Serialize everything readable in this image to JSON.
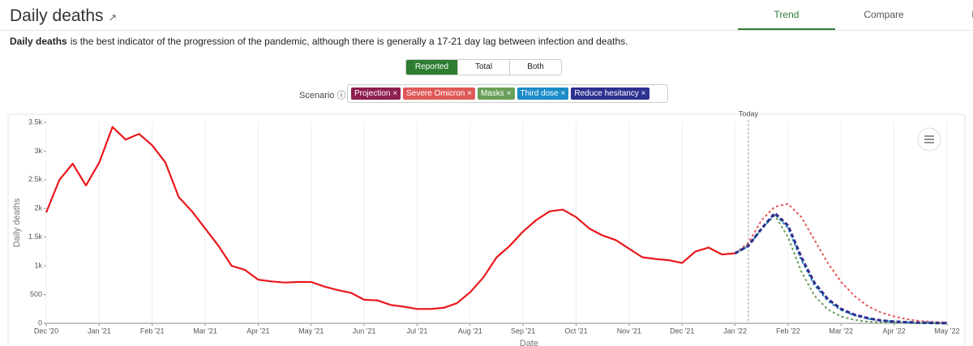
{
  "header": {
    "title": "Daily deaths",
    "tabs": [
      "Trend",
      "Compare",
      "Map"
    ]
  },
  "description": {
    "bold": "Daily deaths",
    "text": "is the best indicator of the progression of the pandemic, although there is generally a 17-21 day lag between infection and deaths."
  },
  "toggle": {
    "other_options": [
      "Total",
      "Both"
    ]
  },
  "scenario_label": "Scenario",
  "chart_data": {
    "type": "line",
    "annotation": "Today",
    "ylabel": "Daily deaths",
    "xlabel": "Date",
    "categories": [
      "Dec '20",
      null,
      null,
      null,
      "Jan '21",
      null,
      null,
      null,
      "Feb '21",
      null,
      null,
      null,
      "Mar '21",
      null,
      null,
      null,
      "Apr '21",
      null,
      null,
      null,
      "May '21",
      null,
      null,
      null,
      "Jun '21",
      null,
      null,
      null,
      "Jul '21",
      null,
      null,
      null,
      "Aug '21",
      null,
      null,
      null,
      "Sep '21",
      null,
      null,
      null,
      "Oct '21",
      null,
      null,
      null,
      "Nov '21",
      null,
      null,
      null,
      "Dec '21",
      null,
      null,
      null,
      "Jan '22",
      null,
      null,
      null,
      "Feb '22",
      null,
      null,
      null,
      "Mar '22",
      null,
      null,
      null,
      "Apr '22",
      null,
      null,
      null,
      "May '22"
    ],
    "ylim": [
      0,
      3500
    ],
    "yticks": [
      0,
      500,
      {
        "value": 1000,
        "label": "1k"
      },
      {
        "value": 1500,
        "label": "1.5k"
      },
      {
        "value": 2000,
        "label": "2k"
      },
      {
        "value": 2500,
        "label": "2.5k"
      },
      {
        "value": 3000,
        "label": "3k"
      },
      {
        "value": 3500,
        "label": "3.5k"
      }
    ],
    "grid": true,
    "series": [
      {
        "name": "Reported",
        "color": "#e8171b",
        "style": "solid",
        "values": [
          1930,
          2500,
          2780,
          2400,
          2800,
          3420,
          3200,
          3300,
          3100,
          2800,
          2200,
          1950,
          1650,
          1350,
          1000,
          930,
          760,
          730,
          710,
          720,
          720,
          640,
          580,
          530,
          410,
          400,
          320,
          290,
          250,
          250,
          270,
          350,
          540,
          800,
          1150,
          1350,
          1600,
          1800,
          1950,
          1980,
          1850,
          1650,
          1530,
          1450,
          1300,
          1150,
          1120,
          1100,
          1050,
          1250,
          1320,
          1200,
          1220,
          null,
          null,
          null,
          null,
          null,
          null,
          null,
          null,
          null,
          null,
          null,
          null,
          null,
          null,
          null,
          null
        ]
      },
      {
        "name": "Projection",
        "color": "#8e1f4f",
        "style": "dashed",
        "values": [
          null,
          null,
          null,
          null,
          null,
          null,
          null,
          null,
          null,
          null,
          null,
          null,
          null,
          null,
          null,
          null,
          null,
          null,
          null,
          null,
          null,
          null,
          null,
          null,
          null,
          null,
          null,
          null,
          null,
          null,
          null,
          null,
          null,
          null,
          null,
          null,
          null,
          null,
          null,
          null,
          null,
          null,
          null,
          null,
          null,
          null,
          null,
          null,
          null,
          null,
          null,
          null,
          1220,
          1350,
          1650,
          1920,
          1700,
          1150,
          700,
          420,
          250,
          150,
          90,
          50,
          30,
          18,
          10,
          5,
          3
        ]
      },
      {
        "name": "Severe Omicron",
        "color": "#e05a5a",
        "style": "dotted",
        "values": [
          null,
          null,
          null,
          null,
          null,
          null,
          null,
          null,
          null,
          null,
          null,
          null,
          null,
          null,
          null,
          null,
          null,
          null,
          null,
          null,
          null,
          null,
          null,
          null,
          null,
          null,
          null,
          null,
          null,
          null,
          null,
          null,
          null,
          null,
          null,
          null,
          null,
          null,
          null,
          null,
          null,
          null,
          null,
          null,
          null,
          null,
          null,
          null,
          null,
          null,
          null,
          null,
          1220,
          1400,
          1800,
          2030,
          2080,
          1850,
          1450,
          1050,
          720,
          480,
          300,
          190,
          120,
          70,
          40,
          25,
          15
        ]
      },
      {
        "name": "Masks",
        "color": "#6a9f58",
        "style": "dotted",
        "values": [
          null,
          null,
          null,
          null,
          null,
          null,
          null,
          null,
          null,
          null,
          null,
          null,
          null,
          null,
          null,
          null,
          null,
          null,
          null,
          null,
          null,
          null,
          null,
          null,
          null,
          null,
          null,
          null,
          null,
          null,
          null,
          null,
          null,
          null,
          null,
          null,
          null,
          null,
          null,
          null,
          null,
          null,
          null,
          null,
          null,
          null,
          null,
          null,
          null,
          null,
          null,
          null,
          1220,
          1350,
          1650,
          1880,
          1500,
          900,
          480,
          240,
          120,
          60,
          30,
          15,
          8,
          4,
          2,
          1,
          1
        ]
      },
      {
        "name": "Third dose",
        "color": "#1a8cc8",
        "style": "dotted",
        "values": [
          null,
          null,
          null,
          null,
          null,
          null,
          null,
          null,
          null,
          null,
          null,
          null,
          null,
          null,
          null,
          null,
          null,
          null,
          null,
          null,
          null,
          null,
          null,
          null,
          null,
          null,
          null,
          null,
          null,
          null,
          null,
          null,
          null,
          null,
          null,
          null,
          null,
          null,
          null,
          null,
          null,
          null,
          null,
          null,
          null,
          null,
          null,
          null,
          null,
          null,
          null,
          null,
          1220,
          1340,
          1640,
          1900,
          1660,
          1100,
          660,
          390,
          230,
          140,
          80,
          45,
          27,
          16,
          9,
          5,
          3
        ]
      },
      {
        "name": "Reduce hesitancy",
        "color": "#2e318f",
        "style": "dashed",
        "values": [
          null,
          null,
          null,
          null,
          null,
          null,
          null,
          null,
          null,
          null,
          null,
          null,
          null,
          null,
          null,
          null,
          null,
          null,
          null,
          null,
          null,
          null,
          null,
          null,
          null,
          null,
          null,
          null,
          null,
          null,
          null,
          null,
          null,
          null,
          null,
          null,
          null,
          null,
          null,
          null,
          null,
          null,
          null,
          null,
          null,
          null,
          null,
          null,
          null,
          null,
          null,
          null,
          1220,
          1350,
          1650,
          1920,
          1700,
          1150,
          700,
          420,
          250,
          150,
          90,
          50,
          30,
          18,
          10,
          5,
          3
        ]
      }
    ]
  }
}
